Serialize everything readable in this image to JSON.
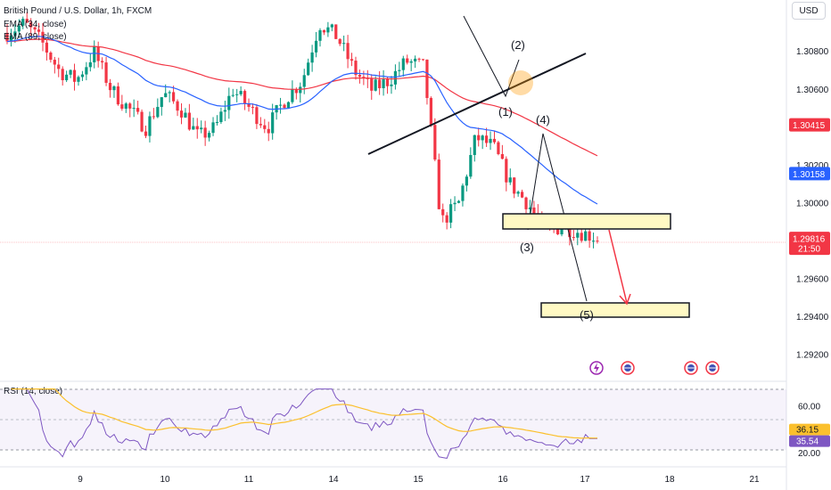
{
  "header": {
    "symbol_title": "British Pound / U.S. Dollar, 1h, FXCM",
    "ema_fast_label": "EMA (34, close)",
    "ema_slow_label": "EMA (89, close)",
    "currency": "USD"
  },
  "rsi": {
    "label": "RSI (14, close)",
    "ticks": [
      "60.00",
      "20.00"
    ],
    "tick_values": [
      60,
      20
    ],
    "value_tag": "36.15",
    "ma_tag": "35.54",
    "value": 36.15,
    "ma_value": 35.54,
    "band_upper": 70,
    "band_lower": 30
  },
  "price_axis": {
    "ticks": [
      "1.30800",
      "1.30600",
      "1.30200",
      "1.30000",
      "1.29600",
      "1.29400",
      "1.29200"
    ],
    "tick_values": [
      1.308,
      1.306,
      1.302,
      1.3,
      1.296,
      1.294,
      1.292
    ],
    "tags": [
      {
        "text": "1.30415",
        "value": 1.30415,
        "color": "#f23645"
      },
      {
        "text": "1.30158",
        "value": 1.30158,
        "color": "#2962ff"
      },
      {
        "text": "1.29816",
        "sub": "21:50",
        "value": 1.29816,
        "color": "#f23645"
      }
    ]
  },
  "time_axis": {
    "labels": [
      "9",
      "10",
      "11",
      "14",
      "15",
      "16",
      "17",
      "18",
      "21"
    ]
  },
  "waves": [
    "(1)",
    "(2)",
    "(3)",
    "(4)",
    "(5)"
  ],
  "colors": {
    "up": "#089981",
    "down": "#f23645",
    "ema_fast": "#2962ff",
    "ema_slow": "#f23645",
    "rsi_line": "#7e57c2",
    "rsi_ma": "#fbc02d",
    "target_box": "#fff9c4"
  },
  "chart_data": {
    "type": "candlestick",
    "title": "British Pound / U.S. Dollar, 1h, FXCM",
    "x_categories": [
      "9",
      "10",
      "11",
      "14",
      "15",
      "16",
      "17",
      "18",
      "21"
    ],
    "ylim": [
      1.291,
      1.3105
    ],
    "series": [
      {
        "name": "EMA (34, close)",
        "last_value": 1.30158
      },
      {
        "name": "EMA (89, close)",
        "last_value": 1.30415
      }
    ],
    "price_samples": [
      1.309,
      1.3095,
      1.3085,
      1.307,
      1.3065,
      1.308,
      1.306,
      1.305,
      1.304,
      1.3058,
      1.305,
      1.3035,
      1.304,
      1.306,
      1.305,
      1.304,
      1.3055,
      1.3065,
      1.3095,
      1.3088,
      1.307,
      1.306,
      1.3065,
      1.3075,
      1.3072,
      1.299,
      1.3,
      1.3035,
      1.303,
      1.301,
      1.3,
      1.2985,
      1.2988,
      1.2985,
      1.2982
    ],
    "last_price": 1.29816,
    "annotations": [
      "(1)",
      "(2)",
      "(3)",
      "(4)",
      "(5)"
    ],
    "rsi_current": 36.15,
    "rsi_ma_current": 35.54
  }
}
